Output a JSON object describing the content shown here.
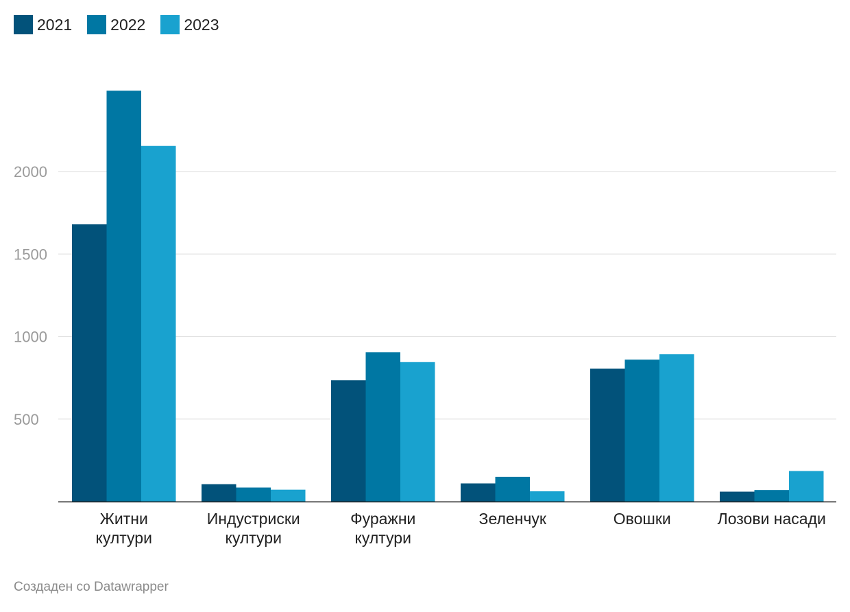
{
  "colors": {
    "s2021": "#02527a",
    "s2022": "#0077a3",
    "s2023": "#19a2cf",
    "grid": "#e2e2e2",
    "axis": "#222222",
    "tick": "#9b9b9b"
  },
  "chart_data": {
    "type": "bar",
    "title": "",
    "xlabel": "",
    "ylabel": "",
    "ylim": [
      0,
      2600
    ],
    "yticks": [
      500,
      1000,
      1500,
      2000
    ],
    "grid": true,
    "legend_position": "top-left",
    "categories": [
      [
        "Житни",
        "култури"
      ],
      [
        "Индустриски",
        "култури"
      ],
      [
        "Фуражни",
        "култури"
      ],
      [
        "Зеленчук"
      ],
      [
        "Овошки"
      ],
      [
        "Лозови насади"
      ]
    ],
    "series": [
      {
        "name": "2021",
        "values": [
          1680,
          105,
          735,
          110,
          805,
          60
        ]
      },
      {
        "name": "2022",
        "values": [
          2490,
          85,
          905,
          150,
          860,
          70
        ]
      },
      {
        "name": "2023",
        "values": [
          2155,
          72,
          845,
          62,
          893,
          185
        ]
      }
    ]
  },
  "legend": [
    {
      "label": "2021"
    },
    {
      "label": "2022"
    },
    {
      "label": "2023"
    }
  ],
  "footer": "Создаден со Datawrapper"
}
